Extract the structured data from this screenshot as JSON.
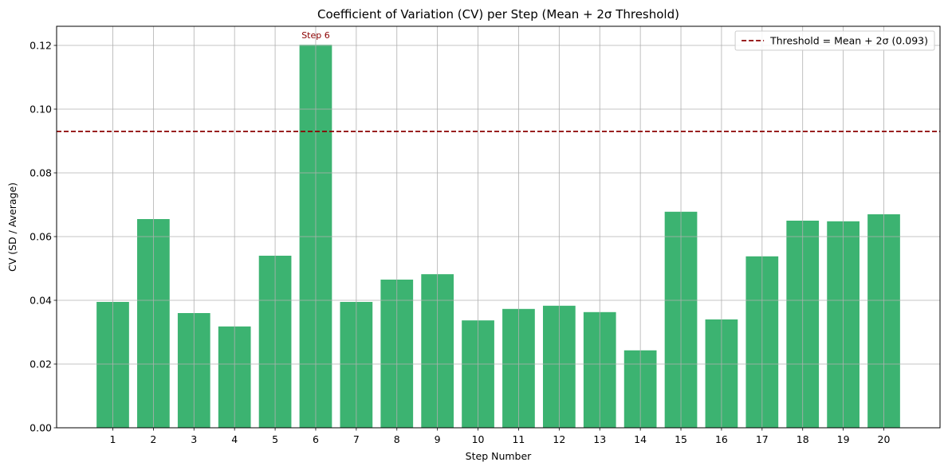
{
  "chart_data": {
    "type": "bar",
    "title": "Coefficient of Variation (CV) per Step (Mean + 2σ Threshold)",
    "xlabel": "Step Number",
    "ylabel": "CV (SD / Average)",
    "categories": [
      "1",
      "2",
      "3",
      "4",
      "5",
      "6",
      "7",
      "8",
      "9",
      "10",
      "11",
      "12",
      "13",
      "14",
      "15",
      "16",
      "17",
      "18",
      "19",
      "20"
    ],
    "values": [
      0.0395,
      0.0655,
      0.036,
      0.0318,
      0.054,
      0.1202,
      0.0395,
      0.0465,
      0.0482,
      0.0337,
      0.0373,
      0.0383,
      0.0363,
      0.0243,
      0.0678,
      0.034,
      0.0538,
      0.065,
      0.0648,
      0.067
    ],
    "ylim": [
      0,
      0.126
    ],
    "yticks": [
      0.0,
      0.02,
      0.04,
      0.06,
      0.08,
      0.1,
      0.12
    ],
    "ytick_labels": [
      "0.00",
      "0.02",
      "0.04",
      "0.06",
      "0.08",
      "0.10",
      "0.12"
    ],
    "grid": true,
    "bar_color": "#3cb371",
    "threshold": {
      "value": 0.093,
      "label": "Threshold = Mean + 2σ (0.093)",
      "color": "#8b0000",
      "style": "dashed"
    },
    "legend_placement": "top-right",
    "annotations": [
      {
        "category": "6",
        "text": "Step 6",
        "color": "#8b0000"
      }
    ]
  }
}
